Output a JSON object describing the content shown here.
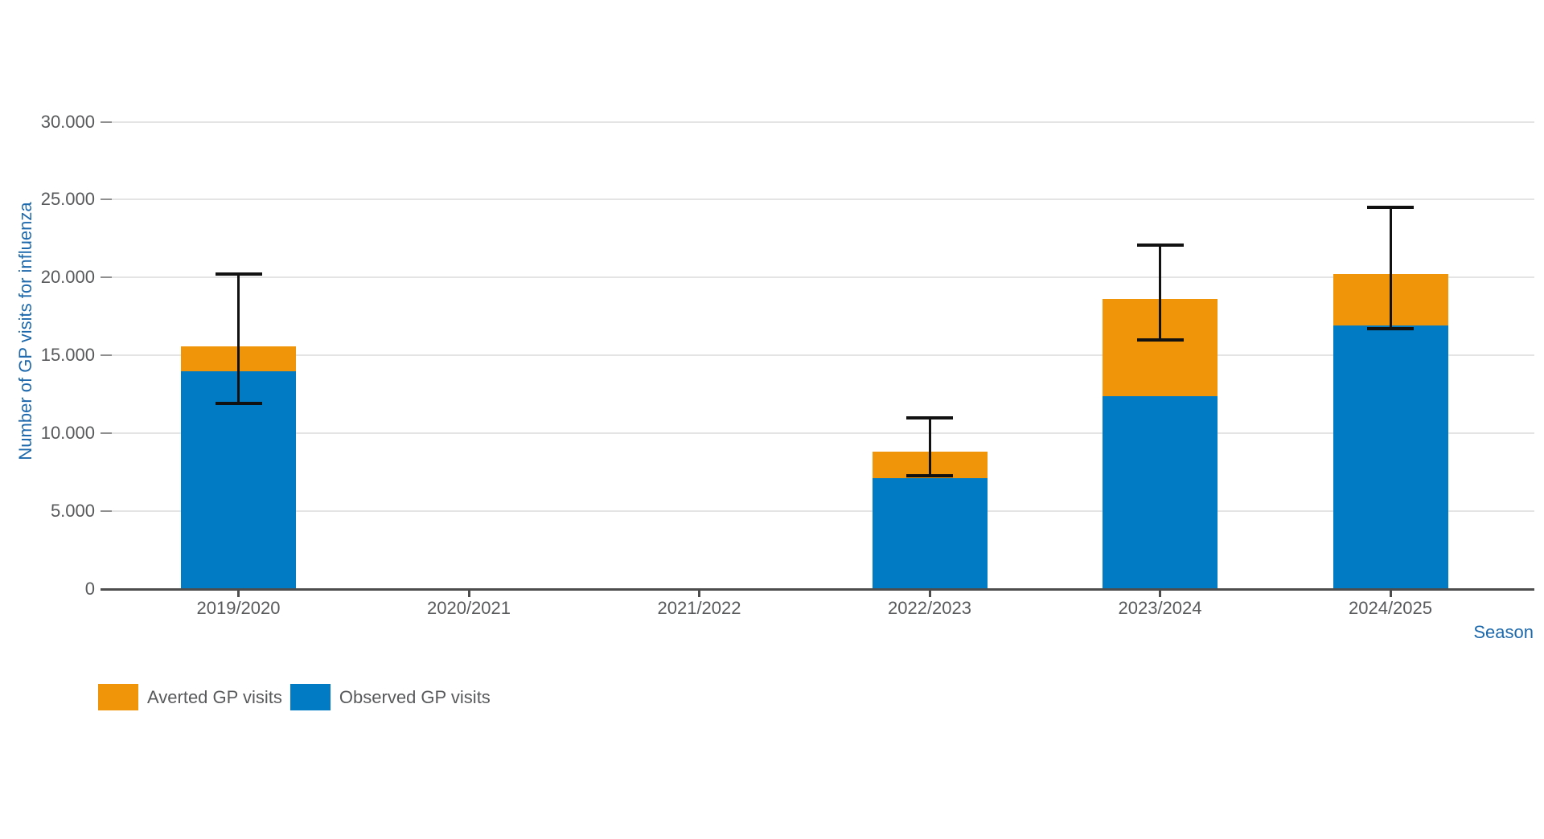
{
  "chart_data": {
    "type": "bar",
    "stacked": true,
    "title": "",
    "xlabel": "Season",
    "ylabel": "Number of GP visits for influenza",
    "categories": [
      "2019/2020",
      "2020/2021",
      "2021/2022",
      "2022/2023",
      "2023/2024",
      "2024/2025"
    ],
    "series": [
      {
        "name": "Observed GP visits",
        "color": "#007bc4",
        "values": [
          14000,
          null,
          null,
          7100,
          12400,
          16900
        ]
      },
      {
        "name": "Averted GP visits",
        "color": "#f0940a",
        "values": [
          1600,
          null,
          null,
          1700,
          6200,
          3300
        ]
      }
    ],
    "totals": [
      15600,
      null,
      null,
      8800,
      18600,
      20200
    ],
    "error_bars": {
      "low": [
        11900,
        null,
        null,
        7250,
        16000,
        16700
      ],
      "high": [
        20200,
        null,
        null,
        11000,
        22100,
        24500
      ]
    },
    "ylim": [
      0,
      30000
    ],
    "yticks": [
      {
        "value": 0,
        "label": "0"
      },
      {
        "value": 5000,
        "label": "5.000"
      },
      {
        "value": 10000,
        "label": "10.000"
      },
      {
        "value": 15000,
        "label": "15.000"
      },
      {
        "value": 20000,
        "label": "20.000"
      },
      {
        "value": 25000,
        "label": "25.000"
      },
      {
        "value": 30000,
        "label": "30.000"
      }
    ],
    "grid": true,
    "legend_position": "bottom-left"
  },
  "legend": {
    "items": [
      {
        "label": "Averted GP visits",
        "color": "#f0940a"
      },
      {
        "label": "Observed GP visits",
        "color": "#007bc4"
      }
    ]
  },
  "colors": {
    "observed": "#007bc4",
    "averted": "#f0940a",
    "axis_title": "#1d69ac",
    "tick_label": "#58595b",
    "gridline": "#e4e4e4",
    "axis_line": "#4d4d4d",
    "error_bar": "#111111",
    "background": "#ffffff"
  }
}
